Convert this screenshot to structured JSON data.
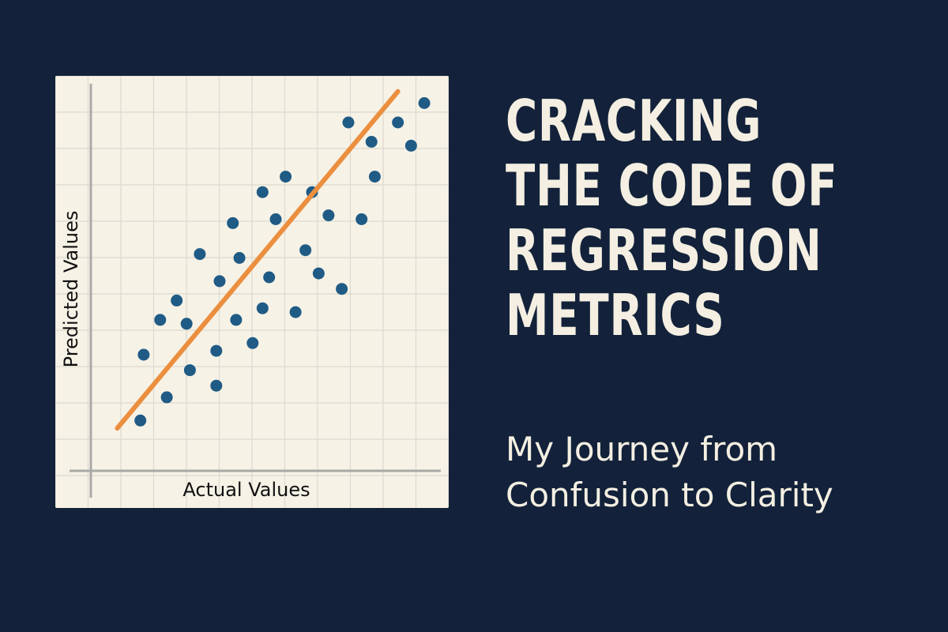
{
  "title_lines": [
    "CRACKING",
    "THE CODE OF",
    "REGRESSION",
    "METRICS"
  ],
  "subtitle_lines": [
    "My Journey from",
    "Confusion to Clarity"
  ],
  "colors": {
    "background": "#13223a",
    "card": "#f6f2e6",
    "grid": "#ddd9ce",
    "axis": "#a9a9a6",
    "points": "#1f5b85",
    "regression_line": "#eb8f3f",
    "text": "#f4efe2"
  },
  "chart_data": {
    "type": "scatter",
    "xlabel": "Actual Values",
    "ylabel": "Predicted Values",
    "xlim": [
      0,
      10.6
    ],
    "ylim": [
      0,
      10
    ],
    "grid": true,
    "points": [
      {
        "x": 1.5,
        "y": 1.3
      },
      {
        "x": 1.6,
        "y": 3.0
      },
      {
        "x": 2.1,
        "y": 3.9
      },
      {
        "x": 2.3,
        "y": 1.9
      },
      {
        "x": 2.6,
        "y": 4.4
      },
      {
        "x": 2.9,
        "y": 3.8
      },
      {
        "x": 3.0,
        "y": 2.6
      },
      {
        "x": 3.3,
        "y": 5.6
      },
      {
        "x": 3.8,
        "y": 2.2
      },
      {
        "x": 3.8,
        "y": 3.1
      },
      {
        "x": 3.9,
        "y": 4.9
      },
      {
        "x": 4.3,
        "y": 6.4
      },
      {
        "x": 4.4,
        "y": 3.9
      },
      {
        "x": 4.5,
        "y": 5.5
      },
      {
        "x": 4.9,
        "y": 3.3
      },
      {
        "x": 5.2,
        "y": 4.2
      },
      {
        "x": 5.2,
        "y": 7.2
      },
      {
        "x": 5.4,
        "y": 5.0
      },
      {
        "x": 5.6,
        "y": 6.5
      },
      {
        "x": 5.9,
        "y": 7.6
      },
      {
        "x": 6.2,
        "y": 4.1
      },
      {
        "x": 6.5,
        "y": 5.7
      },
      {
        "x": 6.7,
        "y": 7.2
      },
      {
        "x": 6.9,
        "y": 5.1
      },
      {
        "x": 7.2,
        "y": 6.6
      },
      {
        "x": 7.6,
        "y": 4.7
      },
      {
        "x": 7.8,
        "y": 9.0
      },
      {
        "x": 8.2,
        "y": 6.5
      },
      {
        "x": 8.5,
        "y": 8.5
      },
      {
        "x": 8.6,
        "y": 7.6
      },
      {
        "x": 9.3,
        "y": 9.0
      },
      {
        "x": 9.7,
        "y": 8.4
      },
      {
        "x": 10.1,
        "y": 9.5
      }
    ],
    "regression_line": {
      "x": [
        0.8,
        9.3
      ],
      "y": [
        1.1,
        9.8
      ]
    }
  }
}
